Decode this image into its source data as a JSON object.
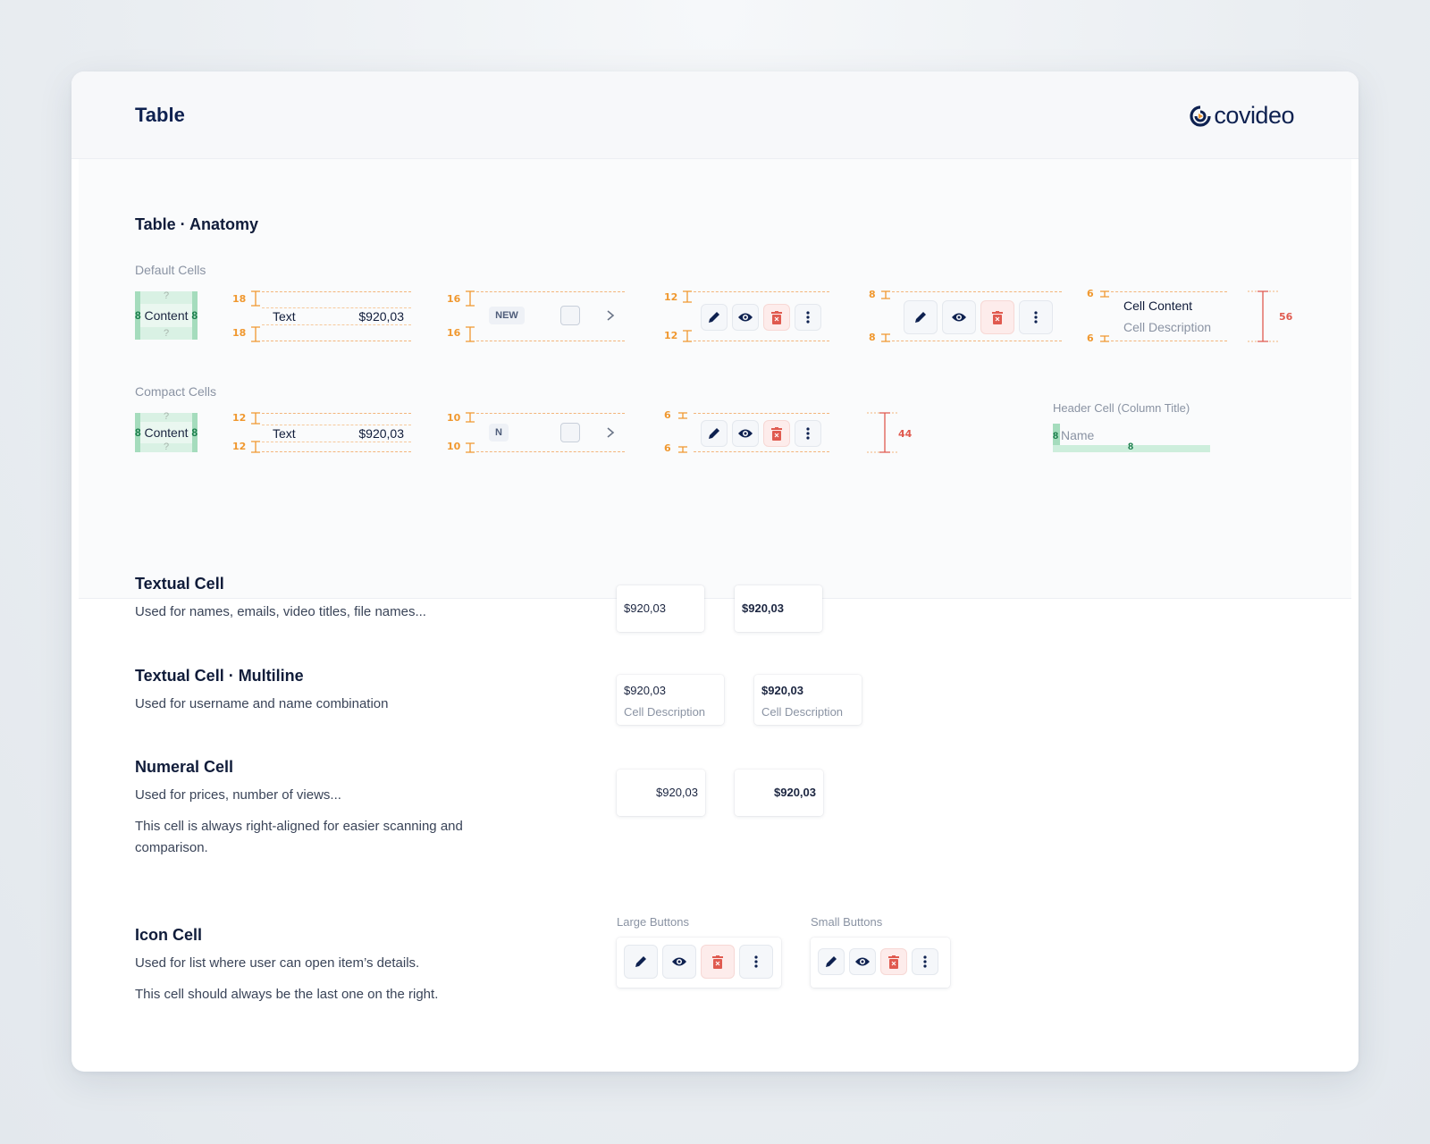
{
  "header": {
    "title": "Table",
    "logo_text": "covideo"
  },
  "anatomy": {
    "title": "Table · Anatomy",
    "default_label": "Default Cells",
    "compact_label": "Compact Cells",
    "content_word": "Content",
    "pad_num": "8",
    "question": "?",
    "text_cell": "Text",
    "amount": "$920,03",
    "badge_default": "NEW",
    "badge_compact": "N",
    "cell_content": "Cell Content",
    "cell_description": "Cell Description",
    "header_cell_label": "Header Cell (Column Title)",
    "header_cell_name": "Name",
    "measures": {
      "d1": "18",
      "d2": "16",
      "d3": "12",
      "d4": "8",
      "d5": "6",
      "d_height": "56",
      "c1": "12",
      "c2": "10",
      "c3": "6",
      "c_height": "44"
    }
  },
  "sections": {
    "textual": {
      "title": "Textual Cell",
      "desc": "Used for names, emails, video titles, file names..."
    },
    "multiline": {
      "title": "Textual Cell · Multiline",
      "desc": "Used for username and name combination"
    },
    "numeral": {
      "title": "Numeral Cell",
      "desc": "Used for prices, number of views...",
      "desc2": "This cell is always right-aligned for easier scanning and comparison."
    },
    "icon": {
      "title": "Icon Cell",
      "desc": "Used for list where user can open item’s details.",
      "desc2": "This cell should always be the last one on the right.",
      "large_label": "Large Buttons",
      "small_label": "Small Buttons"
    }
  },
  "demo": {
    "amount": "$920,03",
    "description": "Cell Description"
  },
  "colors": {
    "navy": "#0e2150",
    "orange": "#f0982f",
    "red": "#e05a4f",
    "green": "#a5dcbd"
  },
  "icons": [
    "pencil-icon",
    "eye-icon",
    "trash-icon",
    "more-vertical-icon",
    "chevron-right-icon"
  ]
}
